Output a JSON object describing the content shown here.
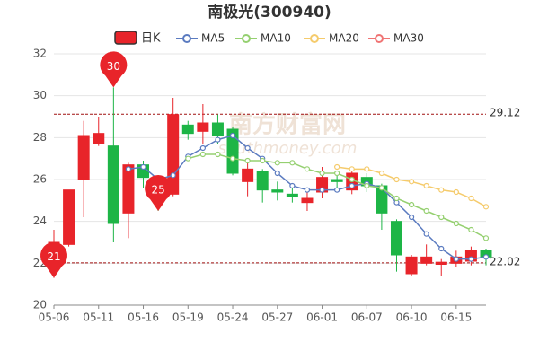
{
  "chart_data": {
    "type": "candlestick",
    "title": "南极光(300940)",
    "watermark": [
      "南方财富网",
      "southmoney.com"
    ],
    "categories": [
      "05-06",
      null,
      null,
      "05-11",
      null,
      null,
      "05-16",
      null,
      null,
      "05-19",
      null,
      null,
      "05-24",
      null,
      null,
      "05-27",
      null,
      null,
      "06-01",
      null,
      null,
      "06-07",
      null,
      null,
      "06-10",
      null,
      null,
      "06-15",
      null,
      null
    ],
    "candles": {
      "name": "日K",
      "up_color": "#e8242a",
      "down_color": "#1db546",
      "open": [
        22.4,
        22.9,
        26.0,
        27.7,
        27.6,
        24.4,
        26.7,
        26.0,
        25.3,
        28.6,
        28.3,
        28.7,
        28.4,
        25.9,
        26.4,
        25.5,
        25.3,
        24.9,
        25.4,
        26.0,
        25.5,
        26.1,
        25.7,
        24.0,
        21.5,
        22.0,
        21.95,
        22.0,
        22.1,
        22.6
      ],
      "high": [
        23.6,
        25.5,
        28.8,
        29.0,
        30.4,
        26.8,
        26.9,
        26.1,
        29.9,
        28.8,
        29.6,
        29.1,
        28.5,
        26.8,
        26.5,
        25.9,
        25.6,
        25.4,
        26.6,
        26.3,
        26.6,
        26.3,
        25.8,
        24.1,
        22.4,
        22.9,
        22.2,
        22.6,
        22.8,
        22.7
      ],
      "low": [
        21.3,
        22.8,
        24.2,
        27.6,
        23.0,
        23.2,
        25.6,
        24.5,
        25.2,
        27.9,
        27.7,
        27.7,
        26.2,
        25.2,
        24.9,
        25.0,
        24.9,
        24.5,
        25.1,
        25.6,
        25.3,
        25.4,
        23.6,
        21.6,
        21.4,
        21.9,
        21.4,
        21.8,
        21.9,
        21.9
      ],
      "close": [
        23.0,
        25.5,
        28.1,
        28.2,
        23.9,
        26.7,
        26.1,
        25.4,
        29.1,
        28.2,
        28.7,
        28.1,
        26.3,
        26.5,
        25.5,
        25.4,
        25.2,
        25.1,
        26.1,
        25.9,
        26.3,
        25.7,
        24.4,
        22.4,
        22.3,
        22.3,
        22.05,
        22.3,
        22.6,
        22.3
      ]
    },
    "series": [
      {
        "name": "MA5",
        "color": "#5b7bc0",
        "values": [
          null,
          null,
          null,
          null,
          null,
          26.5,
          26.6,
          26.0,
          26.2,
          27.1,
          27.5,
          27.9,
          28.1,
          27.5,
          27.0,
          26.3,
          25.7,
          25.5,
          25.5,
          25.5,
          25.7,
          25.8,
          25.6,
          24.9,
          24.2,
          23.4,
          22.7,
          22.2,
          22.2,
          22.3
        ]
      },
      {
        "name": "MA10",
        "color": "#95d070",
        "values": [
          null,
          null,
          null,
          null,
          null,
          null,
          null,
          null,
          null,
          27.0,
          27.2,
          27.2,
          27.0,
          26.9,
          26.9,
          26.8,
          26.8,
          26.5,
          26.3,
          26.3,
          26.0,
          25.7,
          25.6,
          25.1,
          24.8,
          24.5,
          24.2,
          23.9,
          23.6,
          23.2
        ]
      },
      {
        "name": "MA20",
        "color": "#f5cb6c",
        "values": [
          null,
          null,
          null,
          null,
          null,
          null,
          null,
          null,
          null,
          null,
          null,
          null,
          null,
          null,
          null,
          null,
          null,
          null,
          null,
          26.6,
          26.5,
          26.5,
          26.3,
          26.0,
          25.9,
          25.7,
          25.5,
          25.4,
          25.1,
          24.7
        ]
      },
      {
        "name": "MA30",
        "color": "#f07474",
        "values": [
          null,
          null,
          null,
          null,
          null,
          null,
          null,
          null,
          null,
          null,
          null,
          null,
          null,
          null,
          null,
          null,
          null,
          null,
          null,
          null,
          null,
          null,
          null,
          null,
          null,
          null,
          null,
          null,
          null,
          null
        ]
      }
    ],
    "markers": [
      {
        "label": "30",
        "value": 30.4
      },
      {
        "label": "21",
        "value": 21.3
      },
      {
        "label": "25",
        "value": 24.5
      }
    ],
    "ref_lines": [
      {
        "value": 29.12
      },
      {
        "value": 22.02
      }
    ],
    "ylim": [
      20,
      32
    ],
    "yticks": [
      20,
      22,
      24,
      26,
      28,
      30,
      32
    ],
    "grid": true
  }
}
